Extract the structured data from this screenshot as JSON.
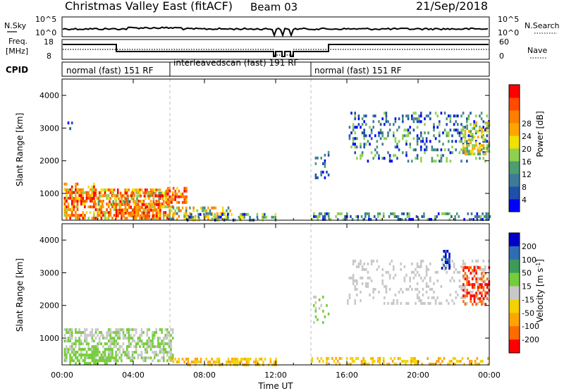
{
  "header": {
    "title": "Christmas Valley East (fitACF)",
    "beam": "Beam 03",
    "date": "21/Sep/2018"
  },
  "labels": {
    "n_sky": "N.Sky",
    "n_search": "N.Search",
    "freq": "Freq.",
    "freq_unit": "[MHz]",
    "nave": "Nave",
    "cpid": "CPID"
  },
  "top_axes": {
    "nsky_ticks": [
      "10^5",
      "10^0"
    ],
    "nsearch_ticks": [
      "10^5",
      "10^0"
    ],
    "freq_ticks": [
      "18",
      "8"
    ],
    "nave_ticks": [
      "60",
      "0"
    ]
  },
  "cpid_segments": [
    {
      "text": "normal (fast) 151 RF"
    },
    {
      "text": "interleavedscan (fast) 191 RF"
    },
    {
      "text": "normal (fast) 151 RF"
    }
  ],
  "colors": {
    "power": [
      "#0000ff",
      "#1f4fa8",
      "#3d7a9a",
      "#4d9d6e",
      "#8fd14f",
      "#f2e000",
      "#ffa500",
      "#ff7f00",
      "#ff4a00",
      "#ff0000"
    ],
    "velocity": [
      "#0000c8",
      "#2f6db3",
      "#3d9b5a",
      "#76cd3a",
      "#c8c8c8",
      "#f2d200",
      "#ffa500",
      "#ff6a00",
      "#ff0000"
    ]
  },
  "chart_data": [
    {
      "type": "heatmap",
      "name": "power",
      "xlabel": "",
      "ylabel": "Slant Range [km]",
      "x_ticks": [
        "00:00",
        "04:00",
        "08:00",
        "12:00",
        "16:00",
        "20:00",
        "00:00"
      ],
      "y_ticks": [
        "1000",
        "2000",
        "3000",
        "4000"
      ],
      "ylim": [
        180,
        4500
      ],
      "colorbar": {
        "label": "Power [dB]",
        "ticks": [
          "4",
          "8",
          "12",
          "16",
          "20",
          "24",
          "28"
        ]
      }
    },
    {
      "type": "heatmap",
      "name": "velocity",
      "xlabel": "Time UT",
      "ylabel": "Slant Range [km]",
      "x_ticks": [
        "00:00",
        "04:00",
        "08:00",
        "12:00",
        "16:00",
        "20:00",
        "00:00"
      ],
      "y_ticks": [
        "1000",
        "2000",
        "3000",
        "4000"
      ],
      "ylim": [
        180,
        4500
      ],
      "colorbar": {
        "label": "Velocity [m s^-1]",
        "ticks": [
          "200",
          "100",
          "50",
          "15",
          "-15",
          "-50",
          "-100",
          "-200"
        ]
      }
    }
  ]
}
